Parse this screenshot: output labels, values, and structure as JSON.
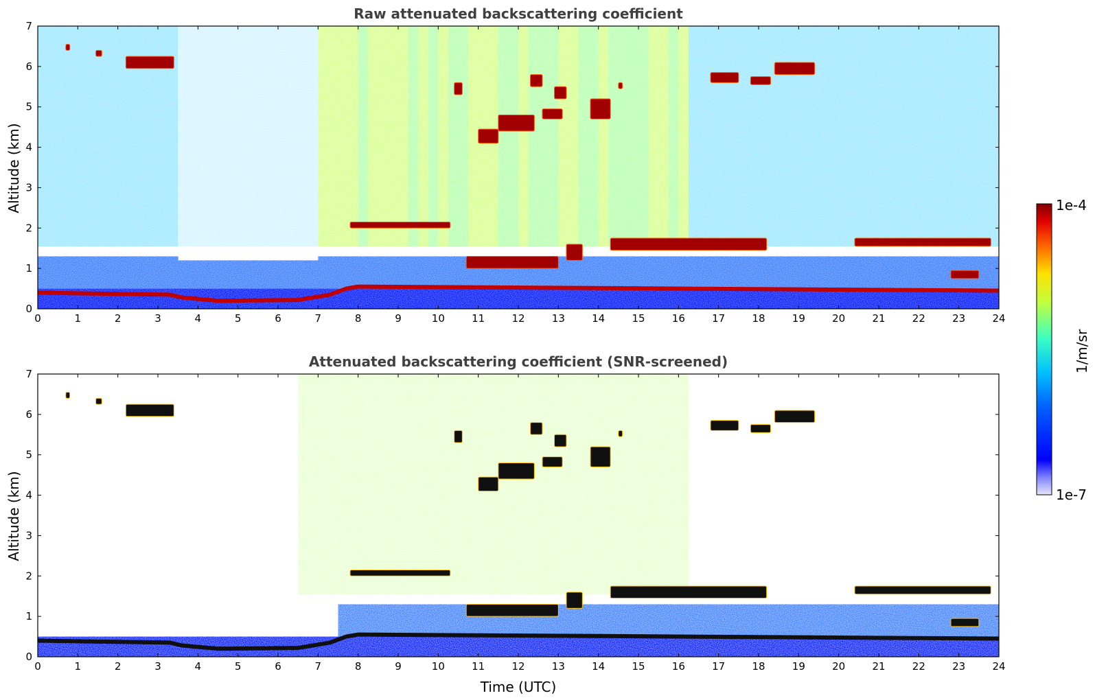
{
  "chart_data": [
    {
      "type": "heatmap",
      "title": "Raw attenuated backscattering coefficient",
      "xlabel": "",
      "ylabel": "Altitude (km)",
      "xlim": [
        0,
        24
      ],
      "ylim": [
        0,
        7
      ],
      "xticks": [
        "0",
        "1",
        "2",
        "3",
        "4",
        "5",
        "6",
        "7",
        "8",
        "9",
        "10",
        "11",
        "12",
        "13",
        "14",
        "15",
        "16",
        "17",
        "18",
        "19",
        "20",
        "21",
        "22",
        "23",
        "24"
      ],
      "yticks": [
        "0",
        "1",
        "2",
        "3",
        "4",
        "5",
        "6",
        "7"
      ],
      "screened": false,
      "features": [
        {
          "kind": "aerosol-layer-top",
          "points": [
            [
              0,
              0.4
            ],
            [
              3.3,
              0.35
            ],
            [
              3.6,
              0.28
            ],
            [
              4.5,
              0.2
            ],
            [
              6.5,
              0.22
            ],
            [
              7.3,
              0.35
            ],
            [
              7.7,
              0.5
            ],
            [
              8,
              0.55
            ],
            [
              24,
              0.45
            ]
          ]
        },
        {
          "kind": "cloud",
          "x": [
            2.2,
            3.4
          ],
          "y": [
            5.95,
            6.25
          ]
        },
        {
          "kind": "cloud",
          "x": [
            1.45,
            1.6
          ],
          "y": [
            6.25,
            6.4
          ]
        },
        {
          "kind": "cloud",
          "x": [
            0.7,
            0.8
          ],
          "y": [
            6.4,
            6.55
          ]
        },
        {
          "kind": "cloud",
          "x": [
            7.8,
            10.3
          ],
          "y": [
            2.0,
            2.15
          ]
        },
        {
          "kind": "cloud",
          "x": [
            10.4,
            10.6
          ],
          "y": [
            5.3,
            5.6
          ]
        },
        {
          "kind": "cloud",
          "x": [
            11.0,
            11.5
          ],
          "y": [
            4.1,
            4.45
          ]
        },
        {
          "kind": "cloud",
          "x": [
            12.3,
            12.6
          ],
          "y": [
            5.5,
            5.8
          ]
        },
        {
          "kind": "cloud",
          "x": [
            12.9,
            13.2
          ],
          "y": [
            5.2,
            5.5
          ]
        },
        {
          "kind": "cloud",
          "x": [
            12.6,
            13.1
          ],
          "y": [
            4.7,
            4.95
          ]
        },
        {
          "kind": "cloud",
          "x": [
            11.5,
            12.4
          ],
          "y": [
            4.4,
            4.8
          ]
        },
        {
          "kind": "cloud",
          "x": [
            13.8,
            14.3
          ],
          "y": [
            4.7,
            5.2
          ]
        },
        {
          "kind": "cloud",
          "x": [
            14.5,
            14.6
          ],
          "y": [
            5.45,
            5.6
          ]
        },
        {
          "kind": "cloud",
          "x": [
            16.8,
            17.5
          ],
          "y": [
            5.6,
            5.85
          ]
        },
        {
          "kind": "cloud",
          "x": [
            17.8,
            18.3
          ],
          "y": [
            5.55,
            5.75
          ]
        },
        {
          "kind": "cloud",
          "x": [
            18.4,
            19.4
          ],
          "y": [
            5.8,
            6.1
          ]
        },
        {
          "kind": "cloud",
          "x": [
            10.7,
            13.0
          ],
          "y": [
            1.0,
            1.3
          ]
        },
        {
          "kind": "cloud",
          "x": [
            13.2,
            13.6
          ],
          "y": [
            1.2,
            1.6
          ]
        },
        {
          "kind": "cloud",
          "x": [
            14.3,
            18.2
          ],
          "y": [
            1.45,
            1.75
          ]
        },
        {
          "kind": "cloud",
          "x": [
            20.4,
            23.8
          ],
          "y": [
            1.55,
            1.75
          ]
        },
        {
          "kind": "cloud",
          "x": [
            22.8,
            23.5
          ],
          "y": [
            0.75,
            0.95
          ]
        }
      ]
    },
    {
      "type": "heatmap",
      "title": "Attenuated backscattering coefficient (SNR-screened)",
      "xlabel": "Time (UTC)",
      "ylabel": "Altitude (km)",
      "xlim": [
        0,
        24
      ],
      "ylim": [
        0,
        7
      ],
      "xticks": [
        "0",
        "1",
        "2",
        "3",
        "4",
        "5",
        "6",
        "7",
        "8",
        "9",
        "10",
        "11",
        "12",
        "13",
        "14",
        "15",
        "16",
        "17",
        "18",
        "19",
        "20",
        "21",
        "22",
        "23",
        "24"
      ],
      "yticks": [
        "0",
        "1",
        "2",
        "3",
        "4",
        "5",
        "6",
        "7"
      ],
      "screened": true
    }
  ],
  "colorbar": {
    "label": "1/m/sr",
    "max_label": "1e-4",
    "min_label": "1e-7",
    "range": [
      1e-07,
      0.0001
    ],
    "colormap": [
      "#e6e6fa",
      "#0000ff",
      "#0060ff",
      "#00c0ff",
      "#40ffc0",
      "#c0ff40",
      "#ffe000",
      "#ff8000",
      "#ff0000",
      "#800000"
    ]
  }
}
